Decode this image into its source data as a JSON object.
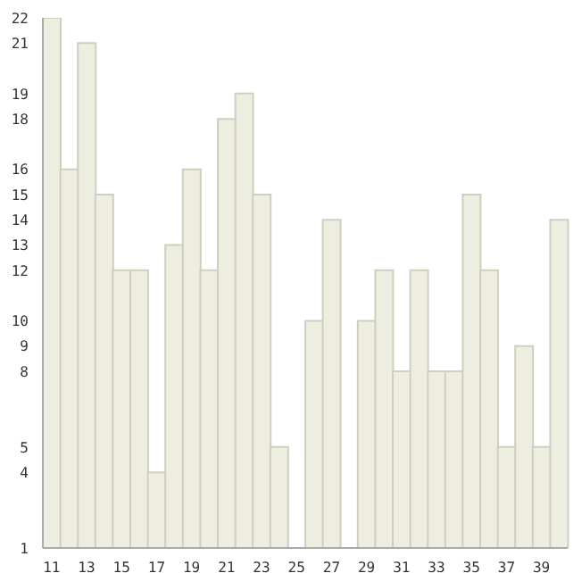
{
  "chart_data": {
    "type": "bar",
    "categories": [
      "11",
      null,
      "13",
      null,
      "15",
      null,
      "17",
      null,
      "19",
      null,
      "21",
      null,
      "23",
      null,
      "25",
      null,
      "27",
      null,
      "29",
      null,
      "31",
      null,
      "33",
      null,
      "35",
      null,
      "37",
      null,
      "39",
      null
    ],
    "values": [
      22,
      16,
      21,
      15,
      12,
      12,
      4,
      13,
      16,
      12,
      18,
      19,
      15,
      5,
      1,
      10,
      14,
      1,
      10,
      12,
      8,
      12,
      8,
      8,
      15,
      12,
      5,
      9,
      5,
      14
    ],
    "color": "#eeeee0",
    "ylim": [
      1,
      22
    ],
    "yticks": [
      1,
      4,
      5,
      8,
      9,
      10,
      12,
      13,
      14,
      15,
      16,
      18,
      19,
      21,
      22
    ],
    "grid": false,
    "legend": false
  }
}
